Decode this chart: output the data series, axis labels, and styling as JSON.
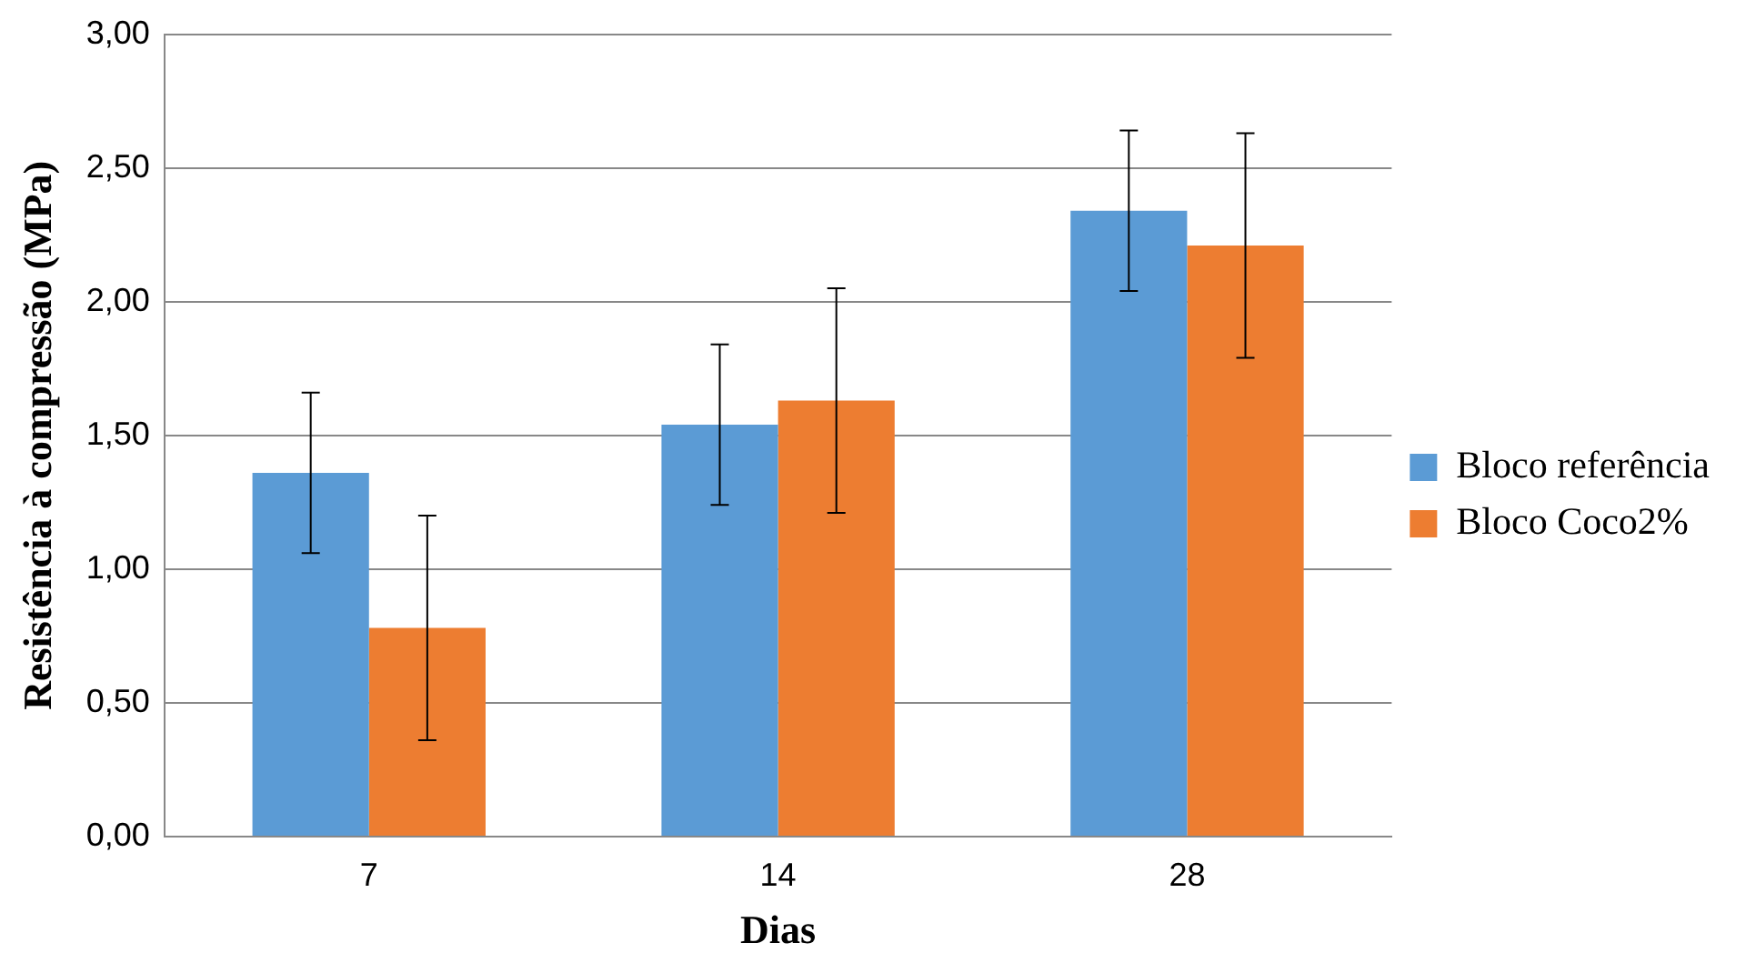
{
  "chart_data": {
    "type": "bar",
    "xlabel": "Dias",
    "ylabel": "Resistência à compressão (MPa)",
    "categories": [
      "7",
      "14",
      "28"
    ],
    "series": [
      {
        "name": "Bloco referência",
        "color": "#5b9bd5",
        "values": [
          1.36,
          1.54,
          2.34
        ],
        "errors": [
          0.3,
          0.3,
          0.3
        ]
      },
      {
        "name": "Bloco Coco2%",
        "color": "#ed7d31",
        "values": [
          0.78,
          1.63,
          2.21
        ],
        "errors": [
          0.42,
          0.42,
          0.42
        ]
      }
    ],
    "ylim": [
      0,
      3
    ],
    "yticks": [
      {
        "value": 0,
        "label": "0,00"
      },
      {
        "value": 0.5,
        "label": "0,50"
      },
      {
        "value": 1,
        "label": "1,00"
      },
      {
        "value": 1.5,
        "label": "1,50"
      },
      {
        "value": 2,
        "label": "2,00"
      },
      {
        "value": 2.5,
        "label": "2,50"
      },
      {
        "value": 3,
        "label": "3,00"
      }
    ],
    "grid": "y",
    "legend": "right"
  }
}
